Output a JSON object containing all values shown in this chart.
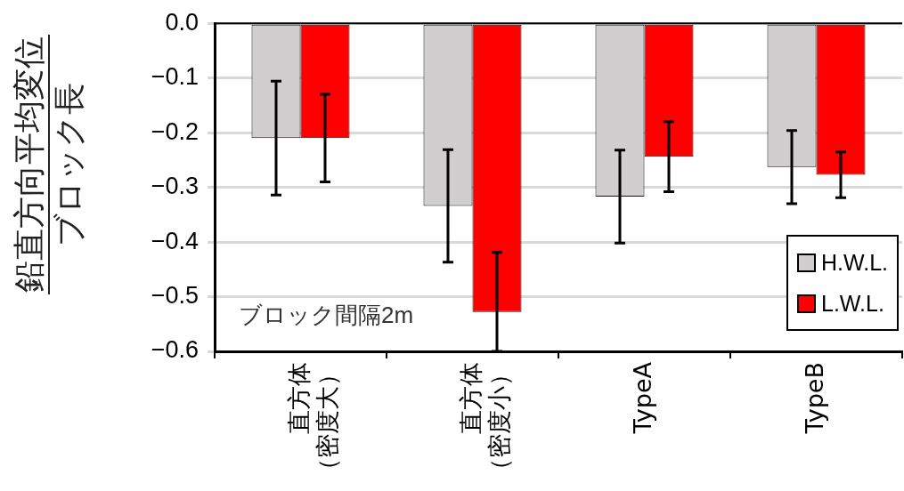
{
  "chart_data": {
    "type": "bar",
    "ylabel": "鉛直方向平均変位ブロック長",
    "categories": [
      "直方体（密度大）",
      "直方体（密度小）",
      "TypeA",
      "TypeB"
    ],
    "series": [
      {
        "name": "H.W.L.",
        "color": "#d0cece",
        "values": [
          -0.21,
          -0.334,
          -0.317,
          -0.263
        ],
        "errors": [
          0.104,
          0.103,
          0.085,
          0.067
        ]
      },
      {
        "name": "L.W.L.",
        "color": "#ff0000",
        "values": [
          -0.21,
          -0.528,
          -0.244,
          -0.277
        ],
        "errors": [
          0.08,
          [
            -0.6,
            -0.419
          ],
          0.064,
          0.042
        ]
      }
    ],
    "ylim": [
      -0.6,
      0
    ],
    "yticks": [
      {
        "value": 0,
        "label": "0.0"
      },
      {
        "value": -0.1,
        "label": "−0.1"
      },
      {
        "value": -0.2,
        "label": "−0.2"
      },
      {
        "value": -0.3,
        "label": "−0.3"
      },
      {
        "value": -0.4,
        "label": "−0.4"
      },
      {
        "value": -0.5,
        "label": "−0.5"
      },
      {
        "value": -0.6,
        "label": "−0.6"
      }
    ],
    "grid": "y",
    "legend": "bottom right",
    "annotations": [
      "ブロック間隔2m"
    ]
  }
}
